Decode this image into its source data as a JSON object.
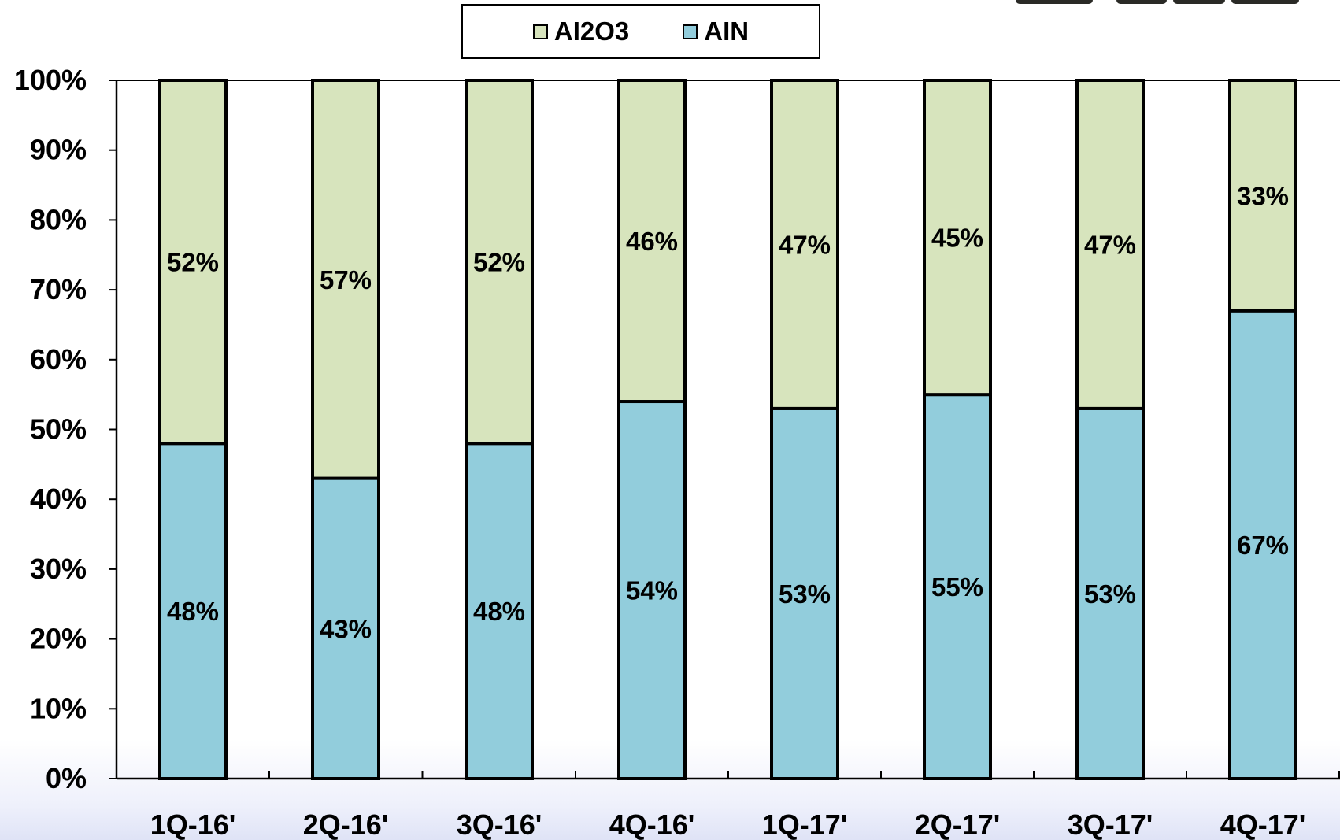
{
  "chart_data": {
    "type": "bar",
    "stacked": true,
    "categories": [
      "1Q-16'",
      "2Q-16'",
      "3Q-16'",
      "4Q-16'",
      "1Q-17'",
      "2Q-17'",
      "3Q-17'",
      "4Q-17'"
    ],
    "series": [
      {
        "name": "AIN",
        "color": "#92cddc",
        "values": [
          48,
          43,
          48,
          54,
          53,
          55,
          53,
          67
        ],
        "labels": [
          "48%",
          "43%",
          "48%",
          "54%",
          "53%",
          "55%",
          "53%",
          "67%"
        ]
      },
      {
        "name": "AI2O3",
        "color": "#d7e4bd",
        "values": [
          52,
          57,
          52,
          46,
          47,
          45,
          47,
          33
        ],
        "labels": [
          "52%",
          "57%",
          "52%",
          "46%",
          "47%",
          "45%",
          "47%",
          "33%"
        ]
      }
    ],
    "legend_order": [
      "AI2O3",
      "AIN"
    ],
    "legend_position": "top-center",
    "ylim": [
      0,
      100
    ],
    "yticks": [
      "0%",
      "10%",
      "20%",
      "30%",
      "40%",
      "50%",
      "60%",
      "70%",
      "80%",
      "90%",
      "100%"
    ],
    "grid": false,
    "title": "",
    "xlabel": "",
    "ylabel": ""
  }
}
